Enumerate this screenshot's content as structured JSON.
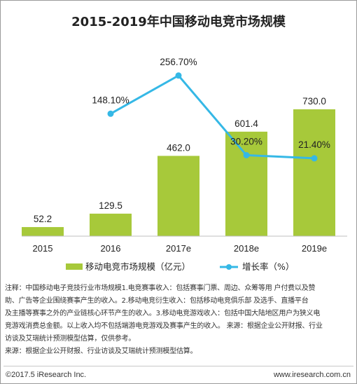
{
  "chart_data": {
    "type": "bar+line",
    "title": "2015-2019年中国移动电竞市场规模",
    "categories": [
      "2015",
      "2016",
      "2017e",
      "2018e",
      "2019e"
    ],
    "series": [
      {
        "name": "移动电竞市场规模（亿元）",
        "type": "bar",
        "values": [
          52.2,
          129.5,
          462.0,
          601.4,
          730.0
        ],
        "value_labels": [
          "52.2",
          "129.5",
          "462.0",
          "601.4",
          "730.0"
        ],
        "color": "#a7c93a"
      },
      {
        "name": "增长率（%）",
        "type": "line",
        "values": [
          null,
          148.1,
          256.7,
          30.2,
          21.4
        ],
        "value_labels": [
          "",
          "148.10%",
          "256.70%",
          "30.20%",
          "21.40%"
        ],
        "color": "#35b8e6"
      }
    ],
    "ylim": [
      0,
      800
    ],
    "growth_ylim": [
      -200,
      330
    ],
    "grid": false,
    "legend_position": "bottom"
  },
  "notes": {
    "line1": "注释：中国移动电子竞技行业市场规模1.电竞赛事收入：包括赛事门票、周边、众筹等用 户付费以及赞",
    "line2": "助、广告等企业围绕赛事产生的收入。2.移动电竞衍生收入：包括移动电竞俱乐部 及选手、直播平台",
    "line3": "及主播等赛事之外的产业链核心环节产生的收入。3.移动电竞游戏收入：包括中国大陆地区用户为狭义电",
    "line4": "竞游戏消费总金额。以上收入均不包括端游电竞游戏及赛事产生的收入。 来源：根据企业公开财报、行业",
    "line5": "访谈及艾瑞统计预测模型估算，仅供参考。",
    "line6": "来源：根据企业公开财报、行业访谈及艾瑞统计预测模型估算。"
  },
  "footer": {
    "copyright": "©2017.5 iResearch Inc.",
    "website": "www.iresearch.com.cn"
  }
}
